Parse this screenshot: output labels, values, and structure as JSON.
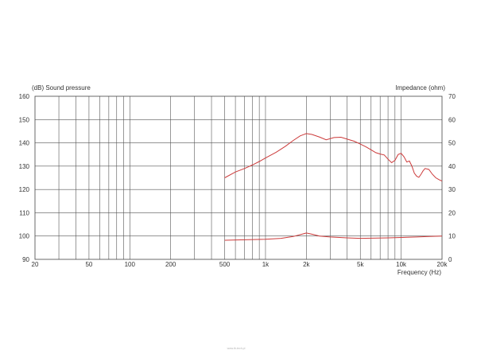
{
  "chart_data": {
    "type": "line",
    "title": "",
    "y_left_label": "(dB)  Sound pressure",
    "y_right_label": "Impedance  (ohm)",
    "x_label": "Frequency  (Hz)",
    "x_scale": "log",
    "xlim": [
      20,
      20000
    ],
    "ylim_left": [
      90,
      160
    ],
    "ylim_right": [
      0,
      70
    ],
    "grid": true,
    "x_ticks": [
      {
        "value": 20,
        "label": "20"
      },
      {
        "value": 50,
        "label": "50"
      },
      {
        "value": 100,
        "label": "100"
      },
      {
        "value": 200,
        "label": "200"
      },
      {
        "value": 500,
        "label": "500"
      },
      {
        "value": 1000,
        "label": "1k"
      },
      {
        "value": 2000,
        "label": "2k"
      },
      {
        "value": 5000,
        "label": "5k"
      },
      {
        "value": 10000,
        "label": "10k"
      },
      {
        "value": 20000,
        "label": "20k"
      }
    ],
    "y_left_ticks": [
      {
        "value": 90,
        "label": "90"
      },
      {
        "value": 100,
        "label": "100"
      },
      {
        "value": 110,
        "label": "110"
      },
      {
        "value": 120,
        "label": "120"
      },
      {
        "value": 130,
        "label": "130"
      },
      {
        "value": 140,
        "label": "140"
      },
      {
        "value": 150,
        "label": "150"
      },
      {
        "value": 160,
        "label": "160"
      }
    ],
    "y_right_ticks": [
      {
        "value": 0,
        "label": "0"
      },
      {
        "value": 10,
        "label": "10"
      },
      {
        "value": 20,
        "label": "20"
      },
      {
        "value": 30,
        "label": "30"
      },
      {
        "value": 40,
        "label": "40"
      },
      {
        "value": 50,
        "label": "50"
      },
      {
        "value": 60,
        "label": "60"
      },
      {
        "value": 70,
        "label": "70"
      }
    ],
    "series": [
      {
        "axis": "left",
        "color": "#cc3b3b",
        "points": [
          [
            500,
            125
          ],
          [
            600,
            127.5
          ],
          [
            700,
            129
          ],
          [
            800,
            130.5
          ],
          [
            900,
            132
          ],
          [
            1000,
            133.5
          ],
          [
            1200,
            136
          ],
          [
            1400,
            138.5
          ],
          [
            1600,
            141
          ],
          [
            1800,
            143
          ],
          [
            2000,
            144
          ],
          [
            2200,
            143.6
          ],
          [
            2500,
            142.5
          ],
          [
            2800,
            141.3
          ],
          [
            3200,
            142.3
          ],
          [
            3600,
            142.4
          ],
          [
            4000,
            141.6
          ],
          [
            4500,
            140.7
          ],
          [
            5000,
            139.5
          ],
          [
            5500,
            138.3
          ],
          [
            6000,
            137
          ],
          [
            6500,
            135.8
          ],
          [
            7000,
            135.2
          ],
          [
            7500,
            134.8
          ],
          [
            8000,
            133
          ],
          [
            8500,
            131.5
          ],
          [
            9000,
            132.5
          ],
          [
            9500,
            135
          ],
          [
            10000,
            135.5
          ],
          [
            10500,
            134
          ],
          [
            11000,
            131.8
          ],
          [
            11500,
            132.2
          ],
          [
            12000,
            130
          ],
          [
            12500,
            127
          ],
          [
            13000,
            125.7
          ],
          [
            13500,
            125.2
          ],
          [
            14000,
            126.5
          ],
          [
            14500,
            128
          ],
          [
            15000,
            129
          ],
          [
            16000,
            128.6
          ],
          [
            17000,
            126.5
          ],
          [
            18000,
            125
          ],
          [
            19000,
            124.2
          ],
          [
            20000,
            123.6
          ]
        ]
      },
      {
        "axis": "right",
        "color": "#cc3b3b",
        "points": [
          [
            500,
            8.2
          ],
          [
            700,
            8.4
          ],
          [
            1000,
            8.6
          ],
          [
            1300,
            9
          ],
          [
            1600,
            9.8
          ],
          [
            1800,
            10.6
          ],
          [
            2000,
            11.3
          ],
          [
            2200,
            10.8
          ],
          [
            2500,
            10
          ],
          [
            3000,
            9.6
          ],
          [
            4000,
            9.2
          ],
          [
            5000,
            9
          ],
          [
            6000,
            9.1
          ],
          [
            8000,
            9.2
          ],
          [
            10000,
            9.4
          ],
          [
            13000,
            9.6
          ],
          [
            16000,
            9.8
          ],
          [
            20000,
            10
          ]
        ]
      }
    ]
  },
  "watermark": "www.tb-tech.pl"
}
